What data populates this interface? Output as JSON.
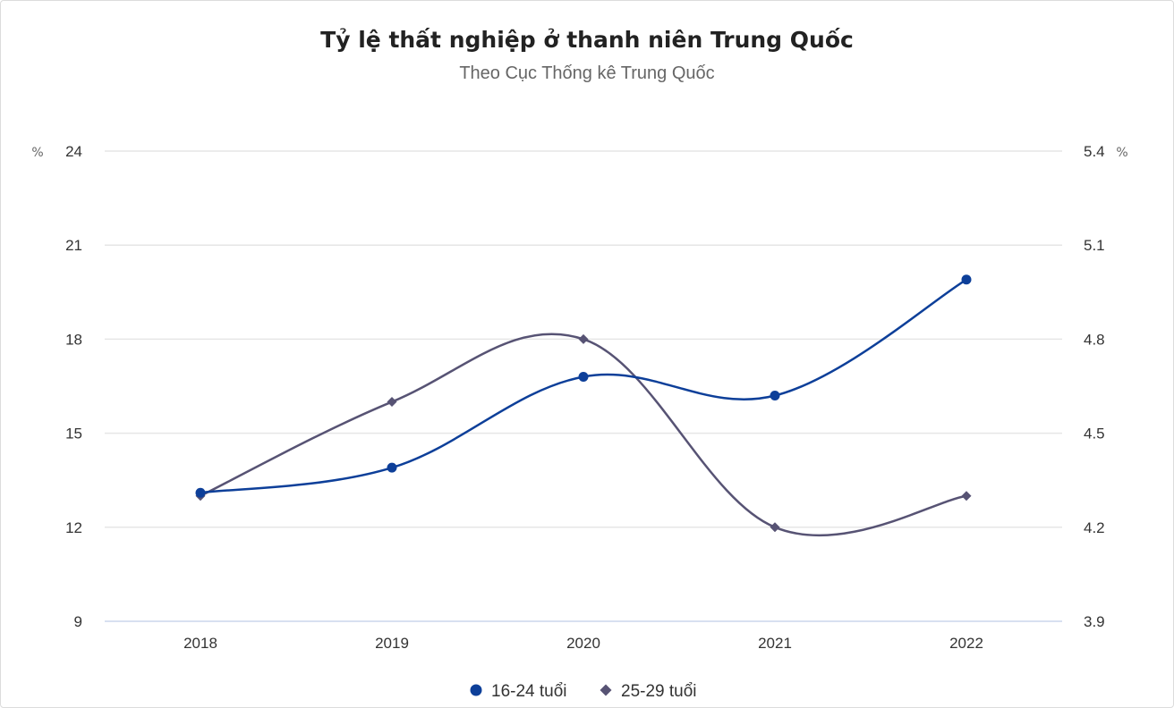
{
  "title": "Tỷ lệ thất nghiệp ở thanh niên Trung Quốc",
  "subtitle": "Theo Cục Thống kê Trung Quốc",
  "colors": {
    "series1": "#0d3f99",
    "series2": "#575374",
    "grid": "#e6e6e6",
    "axis": "#ccd6eb"
  },
  "chart_data": {
    "type": "line",
    "title": "Tỷ lệ thất nghiệp ở thanh niên Trung Quốc",
    "subtitle": "Theo Cục Thống kê Trung Quốc",
    "categories": [
      "2018",
      "2019",
      "2020",
      "2021",
      "2022"
    ],
    "y_left": {
      "unit": "%",
      "ticks": [
        "9",
        "12",
        "15",
        "18",
        "21",
        "24"
      ],
      "ylim": [
        9,
        24
      ]
    },
    "y_right": {
      "unit": "%",
      "ticks": [
        "3.9",
        "4.2",
        "4.5",
        "4.8",
        "5.1",
        "5.4"
      ],
      "ylim": [
        3.9,
        5.4
      ]
    },
    "grid": true,
    "legend_position": "bottom-center",
    "series": [
      {
        "name": "16-24 tuổi",
        "axis": "left",
        "marker": "circle",
        "values": [
          13.1,
          13.9,
          16.8,
          16.2,
          19.9
        ]
      },
      {
        "name": "25-29 tuổi",
        "axis": "right",
        "marker": "diamond",
        "values": [
          4.3,
          4.6,
          4.8,
          4.2,
          4.3
        ]
      }
    ]
  }
}
